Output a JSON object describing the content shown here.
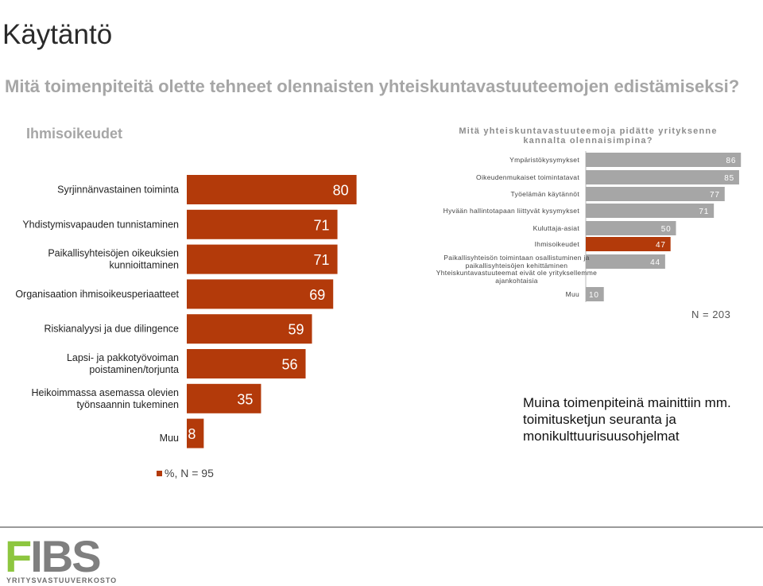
{
  "page": {
    "title": "Käytäntö",
    "subtitle": "Mitä toimenpiteitä olette tehneet olennaisten yhteiskuntavastuuteemojen edistämiseksi?",
    "section": "Ihmisoikeudet",
    "note": "Muina toimenpiteinä mainittiin mm. toimitusketjun seuranta ja monikulttuurisuusohjelmat",
    "legend_label": "%, N = 95"
  },
  "logo": {
    "letters_green": "F",
    "letters_grey": "IBS",
    "letter_i": "I",
    "subtitle": "YRITYSVASTUUVERKOSTO"
  },
  "colors": {
    "accent": "#b33a0a",
    "grey_bar": "#a6a6a6",
    "logo_green": "#8dc63f",
    "logo_grey": "#7f7f7f"
  },
  "chart_data": [
    {
      "type": "bar",
      "orientation": "horizontal",
      "categories": [
        "Syrjinnänvastainen toiminta",
        "Yhdistymisvapauden tunnistaminen",
        "Paikallisyhteisöjen oikeuksien kunnioittaminen",
        "Organisaation ihmisoikeusperiaatteet",
        "Riskianalyysi ja due dilingence",
        "Lapsi- ja pakkotyövoiman poistaminen/torjunta",
        "Heikoimmassa asemassa olevien työnsaannin tukeminen",
        "Muu"
      ],
      "values": [
        80,
        71,
        71,
        69,
        59,
        56,
        35,
        8
      ],
      "legend": "%, N = 95",
      "color": "#b33a0a"
    },
    {
      "type": "bar",
      "orientation": "horizontal",
      "title": "Mitä yhteiskuntavastuuteemoja pidätte yrityksenne kannalta olennaisimpina?",
      "categories": [
        "Ympäristökysymykset",
        "Oikeudenmukaiset toimintatavat",
        "Työelämän käytännöt",
        "Hyvään hallintotapaan liittyvät kysymykset",
        "Kuluttaja-asiat",
        "Ihmisoikeudet",
        "Paikallisyhteisön toimintaan osallistuminen ja paikallisyhteisöjen kehittäminen",
        "Yhteiskuntavastuuteemat eivät ole yrityksellemme ajankohtaisia",
        "Muu"
      ],
      "values": [
        86,
        85,
        77,
        71,
        50,
        47,
        44,
        null,
        10
      ],
      "highlight": "Ihmisoikeudet",
      "annotation": "N = 203"
    }
  ]
}
